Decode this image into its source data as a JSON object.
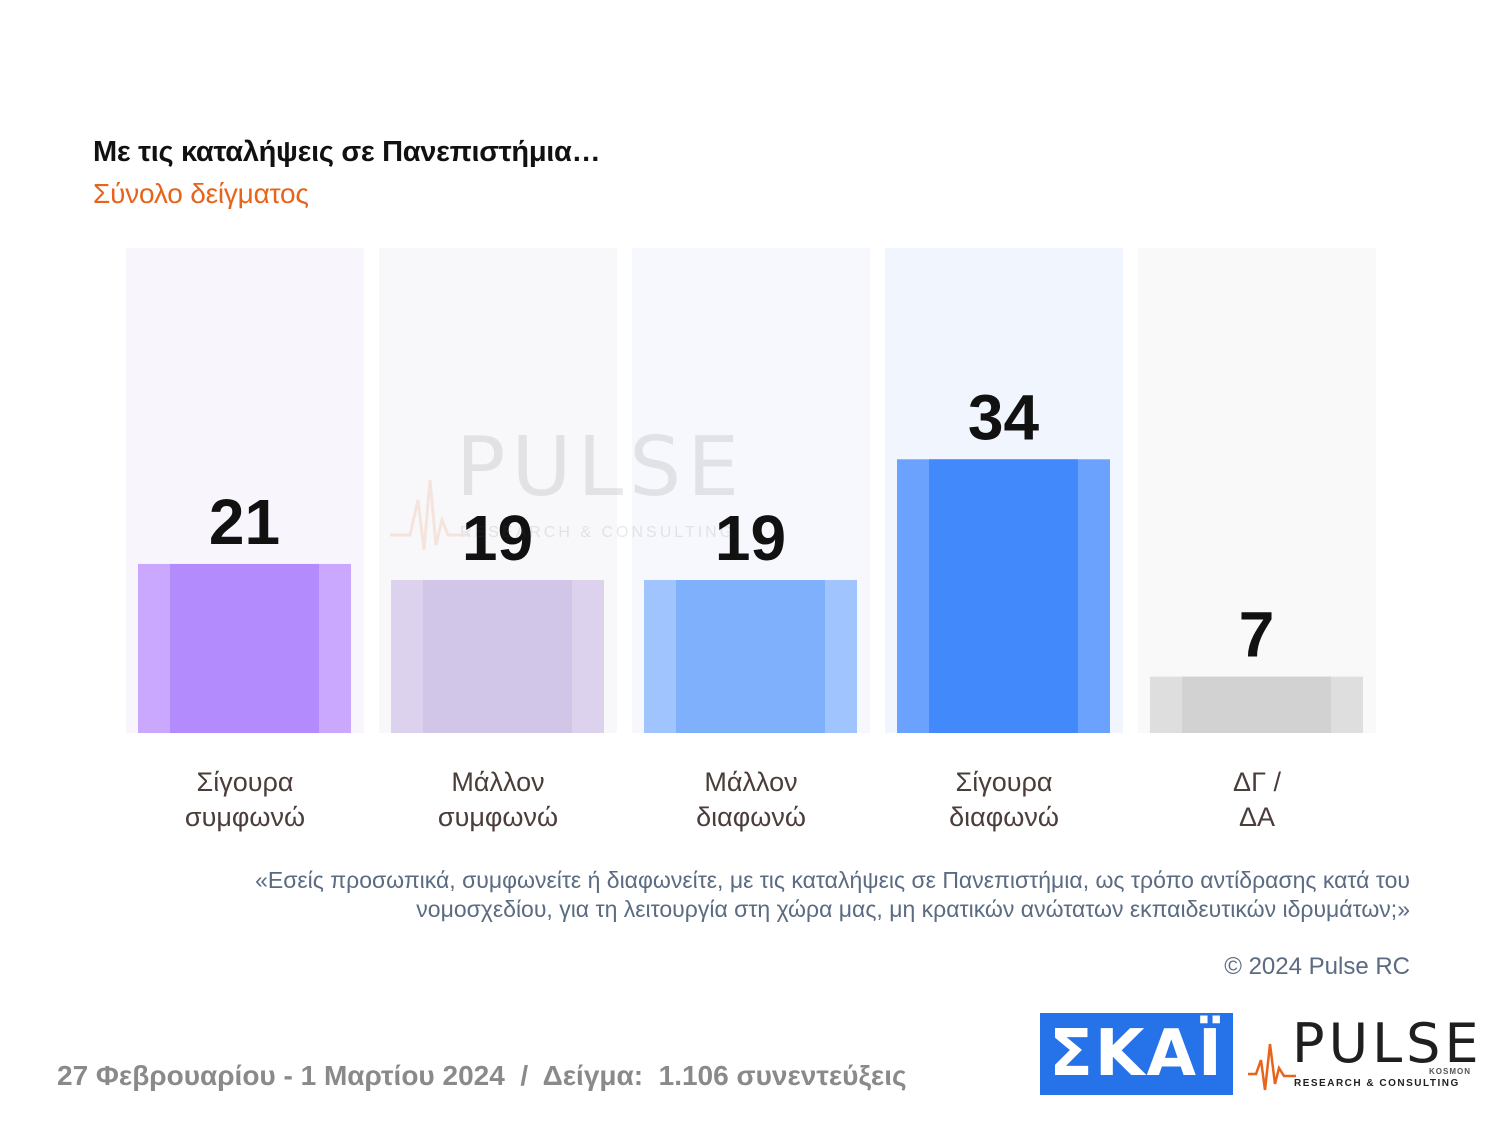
{
  "header": {
    "title": "Με τις καταλήψεις σε Πανεπιστήμια…",
    "subtitle": "Σύνολο δείγματος"
  },
  "chart_data": {
    "type": "bar",
    "title": "Με τις καταλήψεις σε Πανεπιστήμια…",
    "subtitle": "Σύνολο δείγματος",
    "categories": [
      "Σίγουρα\nσυμφωνώ",
      "Μάλλον\nσυμφωνώ",
      "Μάλλον\nδιαφωνώ",
      "Σίγουρα\nδιαφωνώ",
      "ΔΓ /\nΔΑ"
    ],
    "values": [
      21,
      19,
      19,
      34,
      7
    ],
    "ylim": [
      0,
      60
    ],
    "grid": false,
    "bar_colors": [
      "#b38bfc",
      "#d2c6e8",
      "#7fb0fc",
      "#4289fc",
      "#d2d2d2"
    ],
    "bar_edge_colors": [
      "#c9a8fd",
      "#ddd2ee",
      "#a0c4fd",
      "#6aa2fd",
      "#dedede"
    ],
    "panel_colors": [
      "#f8f5fd",
      "#f8f8fb",
      "#f6f8fd",
      "#f1f6fe",
      "#f9f9f9"
    ]
  },
  "notes": {
    "question": "«Εσείς προσωπικά, συμφωνείτε ή διαφωνείτε, με τις καταλήψεις σε Πανεπιστήμια, ως τρόπο αντίδρασης κατά του νομοσχεδίου, για τη λειτουργία στη χώρα μας, μη κρατικών ανώτατων εκπαιδευτικών ιδρυμάτων;»",
    "copyright": "© 2024 Pulse RC"
  },
  "footer": {
    "dates": "27 Φεβρουαρίου - 1 Μαρτίου 2024  /  Δείγμα:  1.106 συνεντεύξεις"
  },
  "logos": {
    "skai": "ΣΚΑΪ",
    "pulse": "PULSE",
    "pulse_tagline": "RESEARCH & CONSULTING",
    "pulse_kosmon": "KOSMON"
  }
}
